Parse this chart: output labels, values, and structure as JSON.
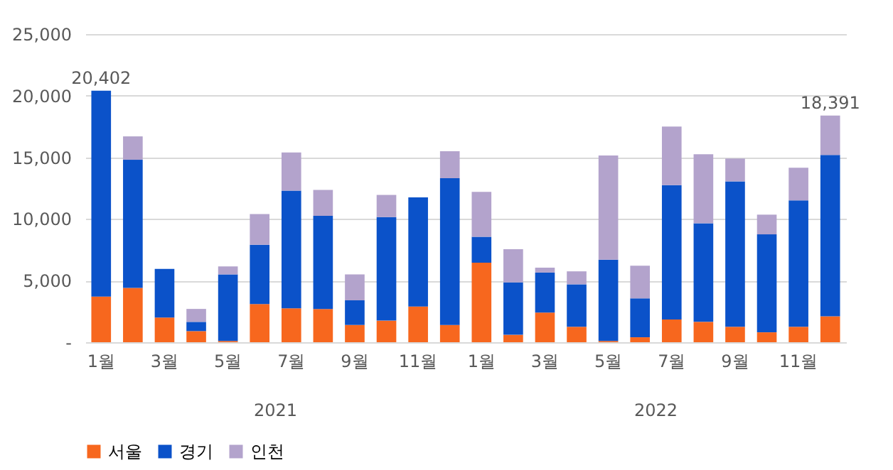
{
  "chart_data": {
    "type": "bar",
    "stacked": true,
    "categories": [
      "1월",
      null,
      "3월",
      null,
      "5월",
      null,
      "7월",
      null,
      "9월",
      null,
      "11월",
      null,
      "1월",
      null,
      "3월",
      null,
      "5월",
      null,
      "7월",
      null,
      "9월",
      null,
      "11월",
      null
    ],
    "series": [
      {
        "name": "서울",
        "color": "#f7671e",
        "values": [
          3700,
          4400,
          2000,
          900,
          100,
          3100,
          2750,
          2700,
          1400,
          1750,
          2900,
          1400,
          6450,
          600,
          2400,
          1250,
          100,
          400,
          1850,
          1650,
          1250,
          800,
          1250,
          2100
        ]
      },
      {
        "name": "경기",
        "color": "#0b52c9",
        "values": [
          16702,
          10400,
          3950,
          750,
          5400,
          4800,
          9550,
          7550,
          2000,
          8400,
          8850,
          11900,
          2100,
          4250,
          3250,
          3450,
          6600,
          3150,
          10900,
          8000,
          11800,
          7950,
          10250,
          13100
        ]
      },
      {
        "name": "인천",
        "color": "#b3a3cc",
        "values": [
          0,
          1900,
          0,
          1050,
          650,
          2500,
          3100,
          2100,
          2100,
          1800,
          0,
          2200,
          3650,
          2700,
          400,
          1050,
          8450,
          2650,
          4750,
          5600,
          1850,
          1600,
          2650,
          3191
        ]
      }
    ],
    "totals": [
      "20,402",
      null,
      null,
      null,
      null,
      null,
      null,
      null,
      null,
      null,
      null,
      null,
      null,
      null,
      null,
      null,
      null,
      null,
      null,
      null,
      null,
      null,
      null,
      "18,391"
    ],
    "annotations": [
      "2021",
      "2022"
    ],
    "ylim": [
      0,
      25000
    ],
    "yticks": [
      {
        "value": 0,
        "label": "-"
      },
      {
        "value": 5000,
        "label": "5,000"
      },
      {
        "value": 10000,
        "label": "10,000"
      },
      {
        "value": 15000,
        "label": "15,000"
      },
      {
        "value": 20000,
        "label": "20,000"
      },
      {
        "value": 25000,
        "label": "25,000"
      }
    ],
    "grid": "y",
    "legend": "bottom"
  }
}
